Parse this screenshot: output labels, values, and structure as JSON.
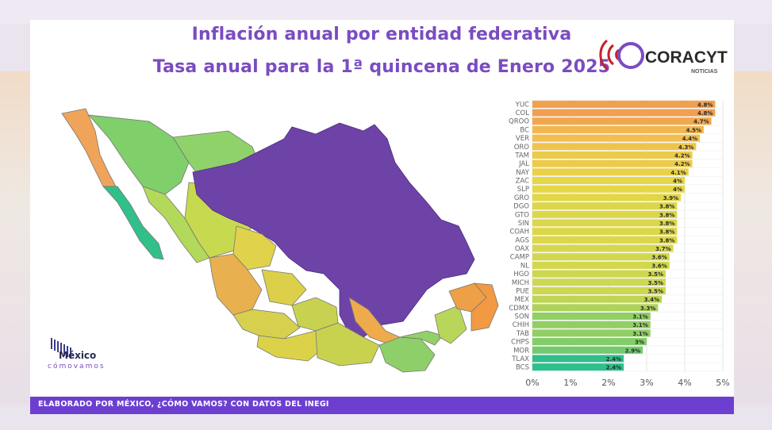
{
  "header": {
    "title_line1": "Inflación anual por entidad federativa",
    "title_line2": "Tasa anual para la 1ª quincena de Enero 2025"
  },
  "logos": {
    "coracyt": "CORACYT",
    "coracyt_sub": "NOTICIAS",
    "mcv_name": "México",
    "mcv_sub": "cómovamos"
  },
  "footer": {
    "text": "ELABORADO POR MÉXICO, ¿CÓMO VAMOS? CON DATOS DEL INEGI"
  },
  "colors": {
    "accent": "#7a4cc0",
    "footer": "#6c3fd0",
    "highlight_state": "#6e43a8",
    "scale_high": "#f0a14a",
    "scale_mid": "#d9d445",
    "scale_low": "#2fbf8c"
  },
  "chart_data": {
    "type": "bar",
    "orientation": "horizontal",
    "categories": [
      "YUC",
      "COL",
      "QROO",
      "BC",
      "VER",
      "ORO",
      "TAM",
      "JAL",
      "NAY",
      "ZAC",
      "SLP",
      "GRO",
      "DGO",
      "GTO",
      "SIN",
      "COAH",
      "AGS",
      "OAX",
      "CAMP",
      "NL",
      "HGO",
      "MICH",
      "PUE",
      "MEX",
      "CDMX",
      "SON",
      "CHIH",
      "TAB",
      "CHPS",
      "MOR",
      "TLAX",
      "BCS"
    ],
    "values": [
      4.8,
      4.8,
      4.7,
      4.5,
      4.4,
      4.3,
      4.2,
      4.2,
      4.1,
      4,
      4,
      3.9,
      3.8,
      3.8,
      3.8,
      3.8,
      3.8,
      3.7,
      3.6,
      3.6,
      3.5,
      3.5,
      3.5,
      3.4,
      3.3,
      3.1,
      3.1,
      3.1,
      3,
      2.9,
      2.4,
      2.4
    ],
    "data_labels": [
      "4.8%",
      "4.8%",
      "4.7%",
      "4.5%",
      "4.4%",
      "4.3%",
      "4.2%",
      "4.2%",
      "4.1%",
      "4%",
      "4%",
      "3.9%",
      "3.8%",
      "3.8%",
      "3.8%",
      "3.8%",
      "3.8%",
      "3.7%",
      "3.6%",
      "3.6%",
      "3.5%",
      "3.5%",
      "3.5%",
      "3.4%",
      "3.3%",
      "3.1%",
      "3.1%",
      "3.1%",
      "3%",
      "2.9%",
      "2.4%",
      "2.4%"
    ],
    "x_ticks": [
      "0%",
      "1%",
      "2%",
      "3%",
      "4%",
      "5%"
    ],
    "xlim": [
      0,
      5
    ],
    "grid": true
  }
}
